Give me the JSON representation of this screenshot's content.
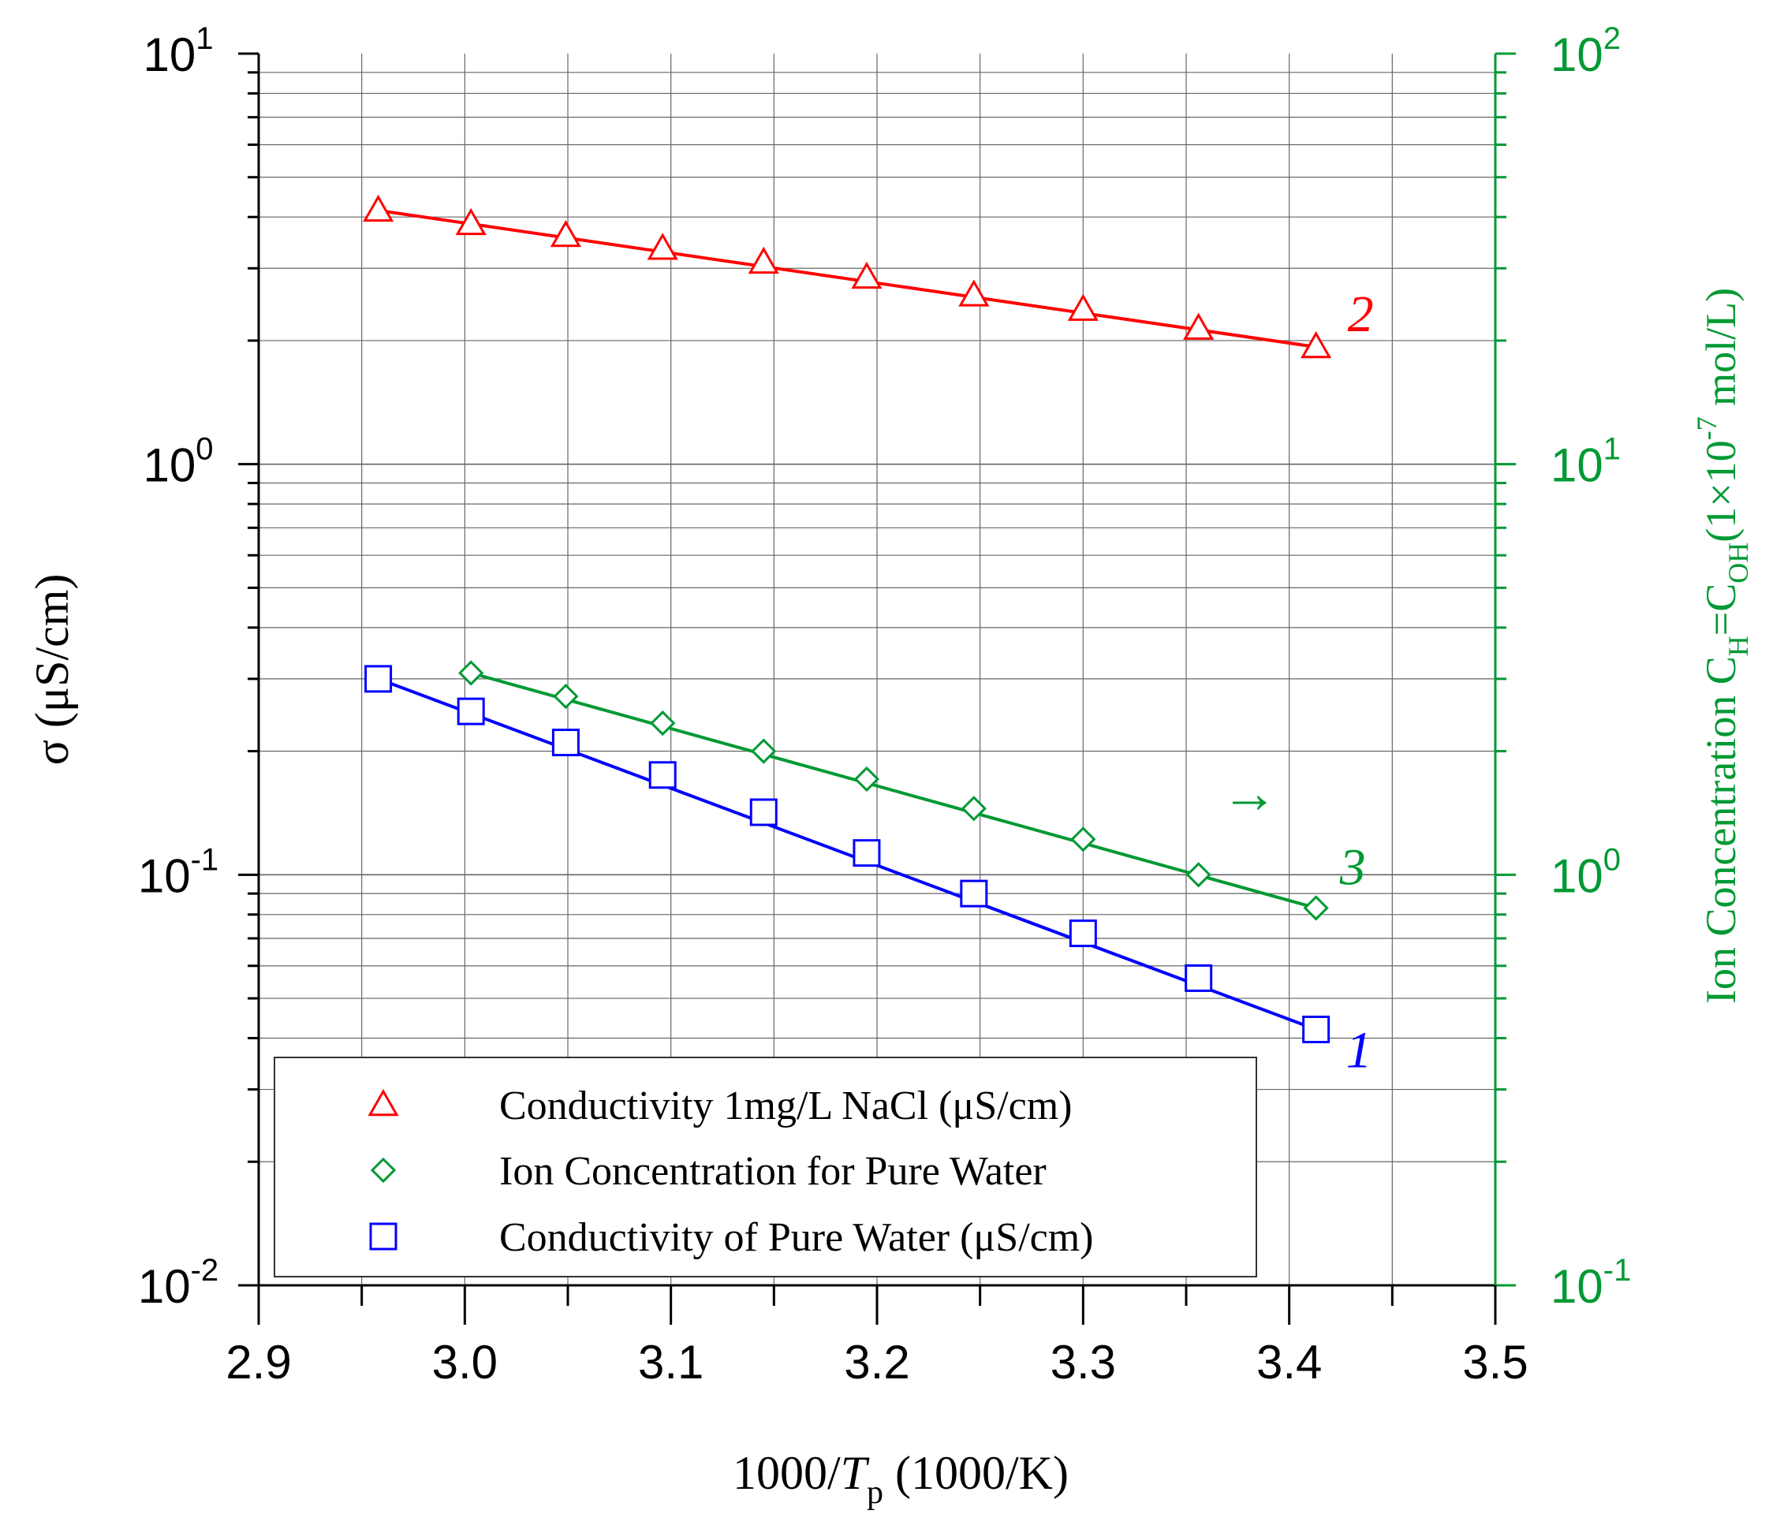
{
  "chart_data": {
    "type": "line",
    "x": [
      2.958,
      3.003,
      3.049,
      3.096,
      3.145,
      3.195,
      3.247,
      3.3,
      3.356,
      3.413
    ],
    "xlabel_parts": [
      "1000/",
      "T",
      "p",
      " (1000/K)"
    ],
    "xlim": [
      2.9,
      3.5
    ],
    "xticks": [
      2.9,
      3.0,
      3.1,
      3.2,
      3.3,
      3.4,
      3.5
    ],
    "xtick_labels": [
      "2.9",
      "3.0",
      "3.1",
      "3.2",
      "3.3",
      "3.4",
      "3.5"
    ],
    "ylabel": "σ (μS/cm)",
    "ylim": [
      0.01,
      10
    ],
    "yscale": "log",
    "ytick_mantissa": [
      "10",
      "10",
      "10",
      "10"
    ],
    "ytick_exponents": [
      "-2",
      "-1",
      "0",
      "1"
    ],
    "y2label_parts": [
      "Ion Concentration C",
      "H",
      "=C",
      "OH",
      "(1×10",
      "-7",
      " mol/L)"
    ],
    "y2lim": [
      0.1,
      100
    ],
    "y2scale": "log",
    "y2tick_mantissa": [
      "10",
      "10",
      "10",
      "10"
    ],
    "y2tick_exponents": [
      "-1",
      "0",
      "1",
      "2"
    ],
    "grid": true,
    "series": [
      {
        "name": "Conductivity 1mg/L NaCl (μS/cm)",
        "label": "2",
        "axis": "left",
        "marker": "triangle",
        "color": "#ff0000",
        "x": [
          2.958,
          3.003,
          3.049,
          3.096,
          3.145,
          3.195,
          3.247,
          3.3,
          3.356,
          3.413
        ],
        "values": [
          4.15,
          3.85,
          3.6,
          3.35,
          3.1,
          2.85,
          2.58,
          2.38,
          2.14,
          1.93
        ]
      },
      {
        "name": "Ion Concentration for Pure Water",
        "label": "3",
        "axis": "right",
        "marker": "diamond",
        "color": "#009933",
        "x": [
          3.003,
          3.049,
          3.096,
          3.145,
          3.195,
          3.247,
          3.3,
          3.356,
          3.413
        ],
        "values": [
          3.1,
          2.72,
          2.34,
          2.0,
          1.71,
          1.45,
          1.22,
          1.0,
          0.83
        ]
      },
      {
        "name": "Conductivity of Pure Water (μS/cm)",
        "label": "1",
        "axis": "left",
        "marker": "square",
        "color": "#0000ff",
        "x": [
          2.958,
          3.003,
          3.049,
          3.096,
          3.145,
          3.195,
          3.247,
          3.3,
          3.356,
          3.413
        ],
        "values": [
          0.3,
          0.25,
          0.21,
          0.175,
          0.142,
          0.113,
          0.09,
          0.072,
          0.056,
          0.042
        ]
      }
    ],
    "annotations": [
      {
        "text": "→",
        "color": "#009933",
        "note": "arrow pointing to right axis for series 3"
      }
    ],
    "legend": "bottom-left",
    "legend_order": [
      0,
      1,
      2
    ]
  },
  "colors": {
    "axis": "#000000",
    "grid": "#666666",
    "right_axis": "#009933"
  }
}
